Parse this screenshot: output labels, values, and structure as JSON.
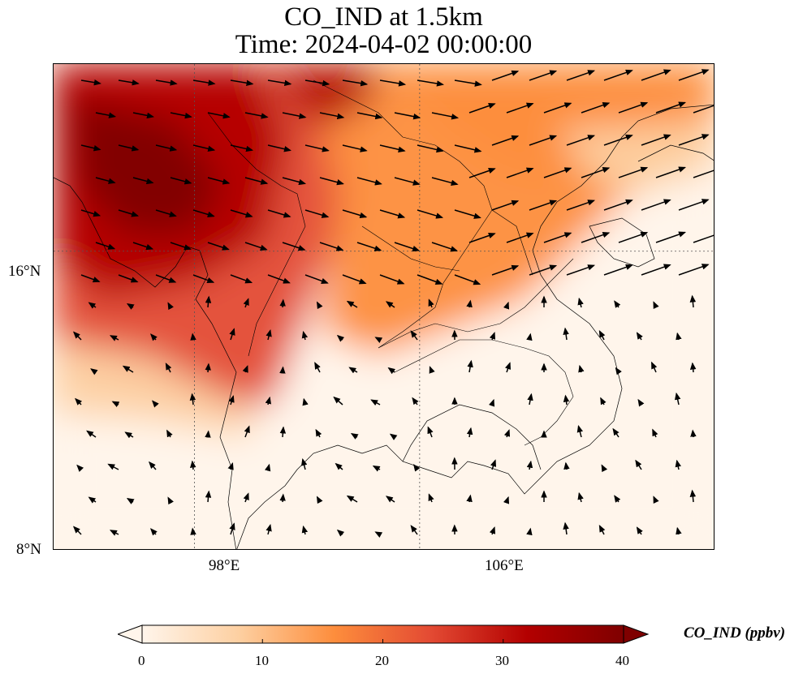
{
  "title": {
    "line1": "CO_IND at 1.5km",
    "line2": "Time: 2024-04-02 00:00:00"
  },
  "map": {
    "lat_range": [
      8,
      21
    ],
    "lon_range": [
      93,
      116.5
    ],
    "lat_ticks": [
      {
        "value": 16,
        "label": "16°N"
      },
      {
        "value": 8,
        "label": "8°N"
      }
    ],
    "lon_ticks": [
      {
        "value": 98,
        "label": "98°E"
      },
      {
        "value": 106,
        "label": "106°E"
      }
    ],
    "gridlines": true,
    "field": "CO_IND",
    "wind_vectors": true
  },
  "colorbar": {
    "label": "CO_IND (ppbv)",
    "min": 0,
    "max": 40,
    "extend": "both",
    "ticks": [
      "0",
      "10",
      "20",
      "30",
      "40"
    ],
    "colors": [
      "#fff5eb",
      "#fdd0a2",
      "#fd8d3c",
      "#e34a33",
      "#b30000",
      "#7f0000"
    ]
  }
}
